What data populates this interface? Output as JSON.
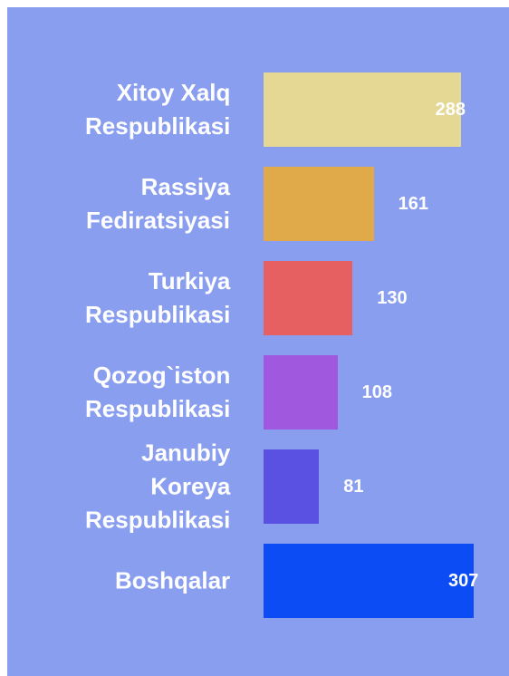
{
  "chart_data": {
    "type": "bar",
    "orientation": "horizontal",
    "categories": [
      "Xitoy Xalq Respublikasi",
      "Rassiya Fediratsiyasi",
      "Turkiya Respublikasi",
      "Qozog`iston Respublikasi",
      "Janubiy Koreya Respublikasi",
      "Boshqalar"
    ],
    "values": [
      288,
      161,
      130,
      108,
      81,
      307
    ],
    "colors": [
      "#e5d894",
      "#e0a94a",
      "#e66062",
      "#a058de",
      "#5a50e2",
      "#0c4cf5"
    ]
  }
}
